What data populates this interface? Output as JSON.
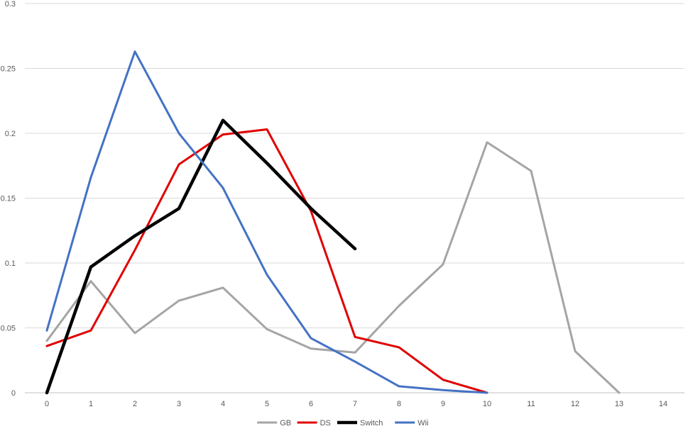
{
  "chart_data": {
    "type": "line",
    "title": "",
    "xlabel": "",
    "ylabel": "",
    "x": [
      0,
      1,
      2,
      3,
      4,
      5,
      6,
      7,
      8,
      9,
      10,
      11,
      12,
      13,
      14
    ],
    "xlim": [
      0,
      14
    ],
    "ylim": [
      0,
      0.3
    ],
    "yticks": [
      0,
      0.05,
      0.1,
      0.15,
      0.2,
      0.25,
      0.3
    ],
    "ytick_labels": [
      "0",
      "0.05",
      "0.1",
      "0.15",
      "0.2",
      "0.25",
      "0.3"
    ],
    "xtick_labels": [
      "0",
      "1",
      "2",
      "3",
      "4",
      "5",
      "6",
      "7",
      "8",
      "9",
      "10",
      "11",
      "12",
      "13",
      "14"
    ],
    "grid": true,
    "legend_position": "bottom",
    "series": [
      {
        "name": "GB",
        "color": "#a5a5a5",
        "width": "normal",
        "x": [
          0,
          1,
          2,
          3,
          4,
          5,
          6,
          7,
          8,
          9,
          10,
          11,
          12,
          13
        ],
        "values": [
          0.04,
          0.086,
          0.046,
          0.071,
          0.081,
          0.049,
          0.034,
          0.031,
          0.067,
          0.099,
          0.193,
          0.171,
          0.032,
          0.0
        ]
      },
      {
        "name": "DS",
        "color": "#e00000",
        "width": "normal",
        "x": [
          0,
          1,
          2,
          3,
          4,
          5,
          6,
          7,
          8,
          9,
          10
        ],
        "values": [
          0.036,
          0.048,
          0.11,
          0.176,
          0.199,
          0.203,
          0.14,
          0.043,
          0.035,
          0.01,
          0.0
        ]
      },
      {
        "name": "Switch",
        "color": "#000000",
        "width": "thick",
        "x": [
          0,
          1,
          2,
          3,
          4,
          5,
          6,
          7
        ],
        "values": [
          0.0,
          0.097,
          0.121,
          0.142,
          0.21,
          0.177,
          0.142,
          0.111
        ]
      },
      {
        "name": "Wii",
        "color": "#4472c4",
        "width": "normal",
        "x": [
          0,
          1,
          2,
          3,
          4,
          5,
          6,
          7,
          8,
          9,
          10
        ],
        "values": [
          0.048,
          0.166,
          0.263,
          0.2,
          0.158,
          0.091,
          0.042,
          0.024,
          0.005,
          0.002,
          0.0
        ]
      }
    ]
  }
}
